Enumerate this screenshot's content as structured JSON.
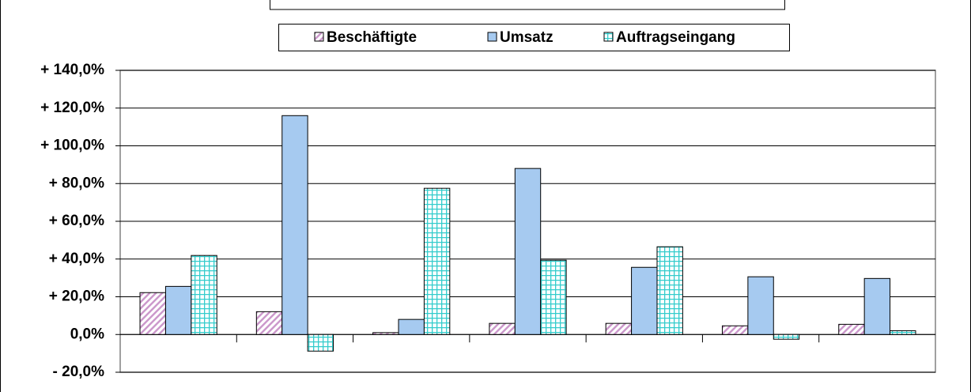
{
  "chart_data": {
    "type": "bar",
    "categories": [
      null,
      null,
      null,
      null,
      null,
      null,
      null
    ],
    "series": [
      {
        "name": "Beschäftigte",
        "color": "#cc99cc",
        "values": [
          22.2,
          12.1,
          1,
          5.9,
          5.9,
          4.6,
          5.4
        ]
      },
      {
        "name": "Umsatz",
        "color": "#a6caf0",
        "values": [
          25.5,
          116,
          8,
          88,
          35.6,
          30.6,
          29.7
        ]
      },
      {
        "name": "Auftragseingang",
        "color": "#33cccc",
        "values": [
          41.9,
          -8.8,
          77.5,
          39.4,
          46.5,
          -2.5,
          2
        ]
      }
    ],
    "ylim": [
      -20,
      140
    ],
    "yticks": [
      {
        "value": -20,
        "label": "- 20,0%"
      },
      {
        "value": 0,
        "label": "0,0%"
      },
      {
        "value": 20,
        "label": "+ 20,0%"
      },
      {
        "value": 40,
        "label": "+ 40,0%"
      },
      {
        "value": 60,
        "label": "+ 60,0%"
      },
      {
        "value": 80,
        "label": "+ 80,0%"
      },
      {
        "value": 100,
        "label": "+ 100,0%"
      },
      {
        "value": 120,
        "label": "+ 120,0%"
      },
      {
        "value": 140,
        "label": "+ 140,0%"
      }
    ],
    "grid": true
  }
}
